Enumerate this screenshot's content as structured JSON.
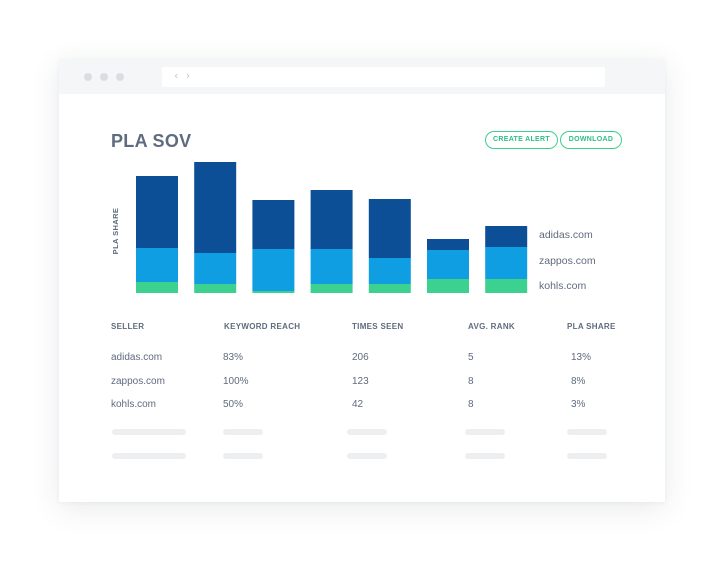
{
  "header": {
    "title": "PLA SOV",
    "create_alert_label": "CREATE ALERT",
    "download_label": "DOWNLOAD",
    "url_nav_glyph": "‹ ›"
  },
  "chart_data": {
    "type": "bar",
    "stacked": true,
    "ylabel": "PLA SHARE",
    "categories": [
      "",
      "",
      "",
      "",
      "",
      "",
      ""
    ],
    "series": [
      {
        "name": "kohls.com",
        "color": "#3dd18f",
        "values": [
          11,
          9,
          2,
          9,
          9,
          14,
          14
        ]
      },
      {
        "name": "zappos.com",
        "color": "#0f9ee2",
        "values": [
          34,
          31,
          42,
          35,
          26,
          29,
          32
        ]
      },
      {
        "name": "adidas.com",
        "color": "#0d4f97",
        "values": [
          72,
          91,
          49,
          59,
          59,
          11,
          21
        ]
      }
    ],
    "ylim": [
      0,
      131
    ],
    "legend_position": "right",
    "grid": false
  },
  "table": {
    "headers": [
      "SELLER",
      "KEYWORD REACH",
      "TIMES SEEN",
      "AVG. RANK",
      "PLA SHARE"
    ],
    "rows": [
      [
        "adidas.com",
        "83%",
        "206",
        "5",
        "13%"
      ],
      [
        "zappos.com",
        "100%",
        "123",
        "8",
        "8%"
      ],
      [
        "kohls.com",
        "50%",
        "42",
        "8",
        "3%"
      ]
    ]
  },
  "colors": {
    "accent": "#3bcf8e",
    "title_text": "#5f6b7e",
    "placeholder": "#eceef0"
  }
}
